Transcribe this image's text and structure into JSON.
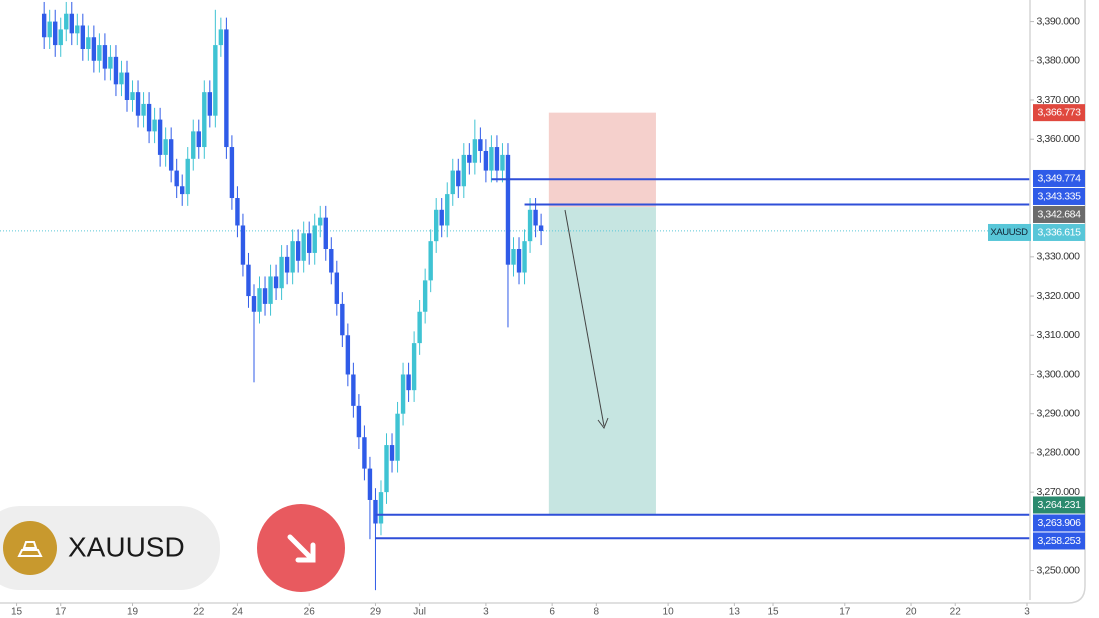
{
  "chart_data": {
    "type": "candlestick",
    "symbol": "XAUUSD",
    "up_color": "#3fc3d3",
    "down_color": "#2f5be8",
    "open": [
      3392,
      3386,
      3390,
      3384,
      3388,
      3392,
      3387,
      3389,
      3383,
      3386,
      3380,
      3384,
      3378,
      3381,
      3374,
      3377,
      3370,
      3372,
      3366,
      3369,
      3362,
      3365,
      3356,
      3360,
      3352,
      3348,
      3346,
      3355,
      3362,
      3358,
      3372,
      3366,
      3384,
      3388,
      3358,
      3345,
      3338,
      3328,
      3320,
      3316,
      3322,
      3318,
      3325,
      3322,
      3330,
      3326,
      3334,
      3329,
      3336,
      3331,
      3338,
      3340,
      3332,
      3326,
      3318,
      3310,
      3300,
      3292,
      3284,
      3276,
      3268,
      3262,
      3270,
      3282,
      3278,
      3290,
      3300,
      3296,
      3308,
      3316,
      3324,
      3334,
      3342,
      3338,
      3346,
      3352,
      3348,
      3356,
      3354,
      3360,
      3357,
      3352,
      3358,
      3352,
      3356,
      3328,
      3332,
      3326,
      3334,
      3342,
      3338
    ],
    "high": [
      3395,
      3393,
      3393,
      3391,
      3395,
      3395,
      3392,
      3392,
      3389,
      3389,
      3387,
      3387,
      3384,
      3384,
      3380,
      3380,
      3375,
      3375,
      3372,
      3372,
      3368,
      3368,
      3363,
      3363,
      3355,
      3351,
      3358,
      3365,
      3365,
      3375,
      3375,
      3393,
      3391,
      3391,
      3361,
      3348,
      3341,
      3331,
      3323,
      3325,
      3325,
      3328,
      3328,
      3333,
      3333,
      3337,
      3337,
      3339,
      3339,
      3341,
      3343,
      3343,
      3335,
      3329,
      3321,
      3313,
      3303,
      3295,
      3287,
      3279,
      3271,
      3273,
      3285,
      3285,
      3293,
      3303,
      3303,
      3311,
      3319,
      3327,
      3337,
      3345,
      3345,
      3349,
      3355,
      3355,
      3359,
      3359,
      3365,
      3363,
      3360,
      3361,
      3361,
      3359,
      3359,
      3335,
      3335,
      3337,
      3345,
      3345,
      3341
    ],
    "low": [
      3383,
      3383,
      3381,
      3381,
      3385,
      3384,
      3384,
      3380,
      3380,
      3377,
      3377,
      3375,
      3375,
      3371,
      3371,
      3367,
      3367,
      3363,
      3363,
      3359,
      3359,
      3353,
      3353,
      3349,
      3345,
      3343,
      3343,
      3352,
      3355,
      3355,
      3363,
      3363,
      3381,
      3355,
      3342,
      3335,
      3325,
      3317,
      3298,
      3313,
      3315,
      3315,
      3319,
      3319,
      3323,
      3323,
      3326,
      3326,
      3328,
      3328,
      3335,
      3329,
      3323,
      3315,
      3307,
      3297,
      3289,
      3281,
      3273,
      3258,
      3245,
      3259,
      3267,
      3275,
      3275,
      3287,
      3293,
      3293,
      3305,
      3313,
      3321,
      3331,
      3335,
      3335,
      3343,
      3345,
      3345,
      3351,
      3351,
      3354,
      3349,
      3349,
      3349,
      3349,
      3312,
      3325,
      3323,
      3323,
      3331,
      3335,
      3333
    ],
    "close": [
      3386,
      3390,
      3384,
      3388,
      3392,
      3387,
      3389,
      3383,
      3386,
      3380,
      3384,
      3378,
      3381,
      3374,
      3377,
      3370,
      3372,
      3366,
      3369,
      3362,
      3365,
      3356,
      3360,
      3352,
      3348,
      3346,
      3355,
      3362,
      3358,
      3372,
      3366,
      3384,
      3388,
      3358,
      3345,
      3338,
      3328,
      3320,
      3316,
      3322,
      3318,
      3325,
      3322,
      3330,
      3326,
      3334,
      3329,
      3336,
      3331,
      3338,
      3340,
      3332,
      3326,
      3318,
      3310,
      3300,
      3292,
      3284,
      3276,
      3268,
      3262,
      3270,
      3282,
      3278,
      3290,
      3300,
      3296,
      3308,
      3316,
      3324,
      3334,
      3342,
      3338,
      3346,
      3352,
      3348,
      3356,
      3354,
      3360,
      3357,
      3352,
      3358,
      3352,
      3356,
      3328,
      3332,
      3326,
      3334,
      3342,
      3338,
      3336.6
    ],
    "xlim": [
      -8,
      178
    ],
    "xticks": [
      {
        "value": -5,
        "label": "15"
      },
      {
        "value": 3,
        "label": "17"
      },
      {
        "value": 16,
        "label": "19"
      },
      {
        "value": 28,
        "label": "22"
      },
      {
        "value": 35,
        "label": "24"
      },
      {
        "value": 48,
        "label": "26"
      },
      {
        "value": 60,
        "label": "29"
      },
      {
        "value": 68,
        "label": "Jul"
      },
      {
        "value": 80,
        "label": "3"
      },
      {
        "value": 92,
        "label": "6"
      },
      {
        "value": 100,
        "label": "8"
      },
      {
        "value": 113,
        "label": "10"
      },
      {
        "value": 125,
        "label": "13"
      },
      {
        "value": 132,
        "label": "15"
      },
      {
        "value": 145,
        "label": "17"
      },
      {
        "value": 157,
        "label": "20"
      },
      {
        "value": 165,
        "label": "22"
      },
      {
        "value": 178,
        "label": "3"
      }
    ],
    "ylim": [
      3243,
      3395.5
    ],
    "yticks": [
      {
        "value": 3390,
        "label": "3,390.000"
      },
      {
        "value": 3380,
        "label": "3,380.000"
      },
      {
        "value": 3370,
        "label": "3,370.000"
      },
      {
        "value": 3360,
        "label": "3,360.000"
      },
      {
        "value": 3330,
        "label": "3,330.000"
      },
      {
        "value": 3320,
        "label": "3,320.000"
      },
      {
        "value": 3310,
        "label": "3,310.000"
      },
      {
        "value": 3300,
        "label": "3,300.000"
      },
      {
        "value": 3290,
        "label": "3,290.000"
      },
      {
        "value": 3280,
        "label": "3,280.000"
      },
      {
        "value": 3270,
        "label": "3,270.000"
      },
      {
        "value": 3250,
        "label": "3,250.000"
      }
    ],
    "levels": [
      {
        "value": 3349.774,
        "from": 81
      },
      {
        "value": 3343.335,
        "from": 87
      },
      {
        "value": 3264.231,
        "from": 60
      },
      {
        "value": 3258.253,
        "from": 60
      }
    ],
    "level_color": "#2f4fd8",
    "position": {
      "entry": 3342.684,
      "stop": 3366.773,
      "target": 3264.231,
      "from": 91.4,
      "to": 110.8,
      "stop_color": "#f5d0cc",
      "target_color": "#c6e5e1"
    },
    "price_labels": [
      {
        "value": 3366.773,
        "label": "3,366.773",
        "color": "#e0483e"
      },
      {
        "value": 3349.774,
        "label": "3,349.774",
        "color": "#2f5be8"
      },
      {
        "value": 3343.335,
        "label": "3,343.335",
        "color": "#2f5be8"
      },
      {
        "value": 3342.684,
        "label": "3,342.684",
        "color": "#6b6b6b"
      },
      {
        "value": 3336.615,
        "label": "3,336.615",
        "color": "#58c6d8",
        "tagged": true,
        "line": "dotted"
      },
      {
        "value": 3264.231,
        "label": "3,264.231",
        "color": "#2b8a6e"
      },
      {
        "value": 3263.906,
        "label": "3,263.906",
        "color": "#2f5be8"
      },
      {
        "value": 3258.253,
        "label": "3,258.253",
        "color": "#2f5be8"
      }
    ]
  }
}
